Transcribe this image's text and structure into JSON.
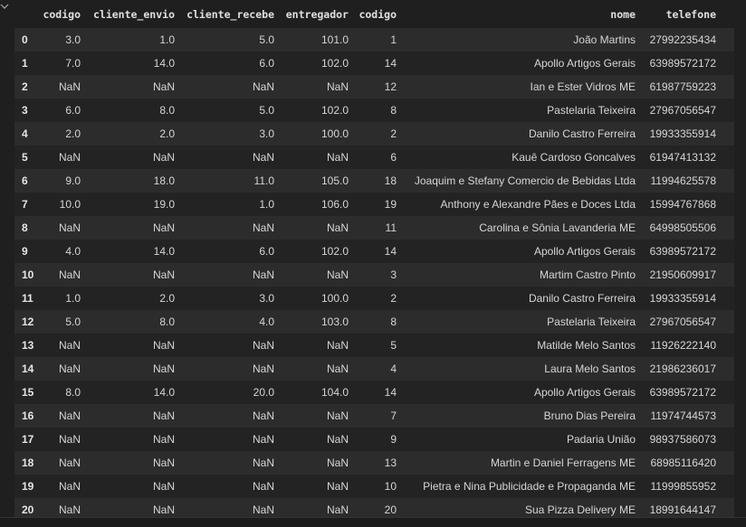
{
  "table": {
    "columns": [
      "",
      "codigo",
      "cliente_envio",
      "cliente_recebe",
      "entregador",
      "codigo",
      "nome",
      "telefone"
    ],
    "rows": [
      [
        "0",
        "3.0",
        "1.0",
        "5.0",
        "101.0",
        "1",
        "João Martins",
        "27992235434"
      ],
      [
        "1",
        "7.0",
        "14.0",
        "6.0",
        "102.0",
        "14",
        "Apollo Artigos Gerais",
        "63989572172"
      ],
      [
        "2",
        "NaN",
        "NaN",
        "NaN",
        "NaN",
        "12",
        "Ian e Ester Vidros ME",
        "61987759223"
      ],
      [
        "3",
        "6.0",
        "8.0",
        "5.0",
        "102.0",
        "8",
        "Pastelaria Teixeira",
        "27967056547"
      ],
      [
        "4",
        "2.0",
        "2.0",
        "3.0",
        "100.0",
        "2",
        "Danilo Castro Ferreira",
        "19933355914"
      ],
      [
        "5",
        "NaN",
        "NaN",
        "NaN",
        "NaN",
        "6",
        "Kauê Cardoso Goncalves",
        "61947413132"
      ],
      [
        "6",
        "9.0",
        "18.0",
        "11.0",
        "105.0",
        "18",
        "Joaquim e Stefany Comercio de Bebidas Ltda",
        "11994625578"
      ],
      [
        "7",
        "10.0",
        "19.0",
        "1.0",
        "106.0",
        "19",
        "Anthony e Alexandre Pães e Doces Ltda",
        "15994767868"
      ],
      [
        "8",
        "NaN",
        "NaN",
        "NaN",
        "NaN",
        "11",
        "Carolina e Sônia Lavanderia ME",
        "64998505506"
      ],
      [
        "9",
        "4.0",
        "14.0",
        "6.0",
        "102.0",
        "14",
        "Apollo Artigos Gerais",
        "63989572172"
      ],
      [
        "10",
        "NaN",
        "NaN",
        "NaN",
        "NaN",
        "3",
        "Martim Castro Pinto",
        "21950609917"
      ],
      [
        "11",
        "1.0",
        "2.0",
        "3.0",
        "100.0",
        "2",
        "Danilo Castro Ferreira",
        "19933355914"
      ],
      [
        "12",
        "5.0",
        "8.0",
        "4.0",
        "103.0",
        "8",
        "Pastelaria Teixeira",
        "27967056547"
      ],
      [
        "13",
        "NaN",
        "NaN",
        "NaN",
        "NaN",
        "5",
        "Matilde Melo Santos",
        "11926222140"
      ],
      [
        "14",
        "NaN",
        "NaN",
        "NaN",
        "NaN",
        "4",
        "Laura Melo Santos",
        "21986236017"
      ],
      [
        "15",
        "8.0",
        "14.0",
        "20.0",
        "104.0",
        "14",
        "Apollo Artigos Gerais",
        "63989572172"
      ],
      [
        "16",
        "NaN",
        "NaN",
        "NaN",
        "NaN",
        "7",
        "Bruno Dias Pereira",
        "11974744573"
      ],
      [
        "17",
        "NaN",
        "NaN",
        "NaN",
        "NaN",
        "9",
        "Padaria União",
        "98937586073"
      ],
      [
        "18",
        "NaN",
        "NaN",
        "NaN",
        "NaN",
        "13",
        "Martin e Daniel Ferragens ME",
        "68985116420"
      ],
      [
        "19",
        "NaN",
        "NaN",
        "NaN",
        "NaN",
        "10",
        "Pietra e Nina Publicidade e Propaganda ME",
        "11999855952"
      ],
      [
        "20",
        "NaN",
        "NaN",
        "NaN",
        "NaN",
        "20",
        "Sua Pizza Delivery ME",
        "18991644147"
      ]
    ]
  }
}
